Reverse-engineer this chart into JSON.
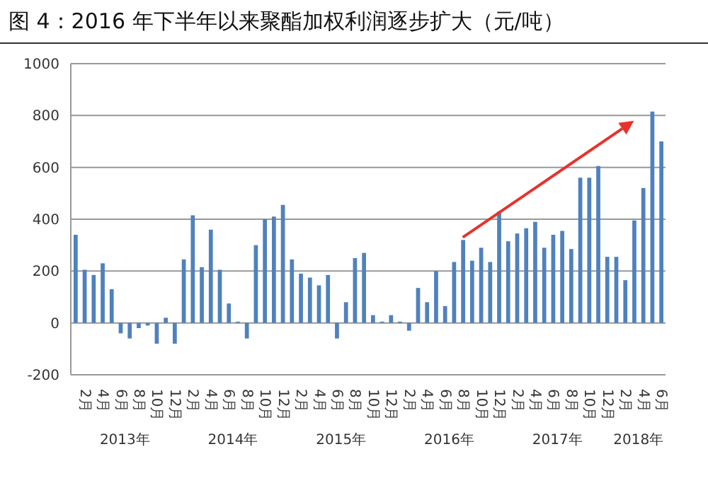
{
  "chart_data": {
    "type": "bar",
    "title": "图 4：2016 年下半年以来聚酯加权利润逐步扩大（元/吨）",
    "categories": [
      null,
      "2月",
      null,
      "4月",
      null,
      "6月",
      null,
      "8月",
      null,
      "10月",
      null,
      "12月",
      null,
      "2月",
      null,
      "4月",
      null,
      "6月",
      null,
      "8月",
      null,
      "10月",
      null,
      "12月",
      null,
      "2月",
      null,
      "4月",
      null,
      "6月",
      null,
      "8月",
      null,
      "10月",
      null,
      "12月",
      null,
      "2月",
      null,
      "4月",
      null,
      "6月",
      null,
      "8月",
      null,
      "10月",
      null,
      "12月",
      null,
      "2月",
      null,
      "4月",
      null,
      "6月",
      null,
      "8月",
      null,
      "10月",
      null,
      "12月",
      null,
      "2月",
      null,
      "4月",
      null,
      "6月"
    ],
    "values": [
      340,
      205,
      185,
      230,
      130,
      -40,
      -60,
      -20,
      -10,
      -80,
      20,
      -80,
      245,
      415,
      215,
      360,
      205,
      75,
      5,
      -60,
      300,
      400,
      410,
      455,
      245,
      190,
      175,
      145,
      185,
      -60,
      80,
      250,
      270,
      30,
      5,
      30,
      5,
      -30,
      135,
      80,
      200,
      65,
      235,
      320,
      240,
      290,
      235,
      430,
      315,
      345,
      365,
      390,
      290,
      340,
      355,
      285,
      560,
      560,
      605,
      255,
      255,
      165,
      395,
      520,
      815,
      700
    ],
    "color": "#4f81bd",
    "ylim": [
      -200,
      1000
    ],
    "yticks": [
      -200,
      0,
      200,
      400,
      600,
      800,
      1000
    ],
    "grid": "y",
    "annotations": [
      "2013年",
      "2014年",
      "2015年",
      "2016年",
      "2017年",
      "2018年"
    ]
  }
}
